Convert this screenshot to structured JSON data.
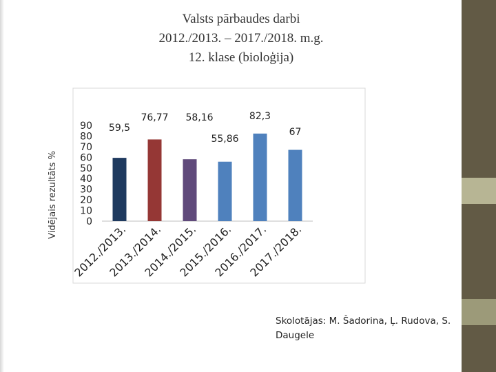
{
  "title_lines": [
    "Valsts pārbaudes darbi",
    "2012./2013. – 2017./2018. m.g.",
    "12. klase (bioloģija)"
  ],
  "teachers_text": "Skolotājas: M. Šadorina, Ļ. Rudova, S. Daugele",
  "chart_data": {
    "type": "bar",
    "title": "",
    "xlabel": "",
    "ylabel": "Vidējais rezultāts %",
    "categories": [
      "2012./2013.",
      "2013./2014.",
      "2014./2015.",
      "2015./2016.",
      "2016./2017.",
      "2017./2018."
    ],
    "values": [
      59.5,
      76.77,
      58.16,
      55.86,
      82.3,
      67
    ],
    "value_labels": [
      "59,5",
      "76,77",
      "58,16",
      "55,86",
      "82,3",
      "67"
    ],
    "bar_colors": [
      "#1f3a5f",
      "#953735",
      "#604a7b",
      "#4f81bd",
      "#4f81bd",
      "#4f81bd"
    ],
    "y_ticks": [
      0,
      10,
      20,
      30,
      40,
      50,
      60,
      70,
      80,
      90
    ],
    "ylim": [
      0,
      90
    ],
    "grid": false,
    "legend": "none"
  }
}
